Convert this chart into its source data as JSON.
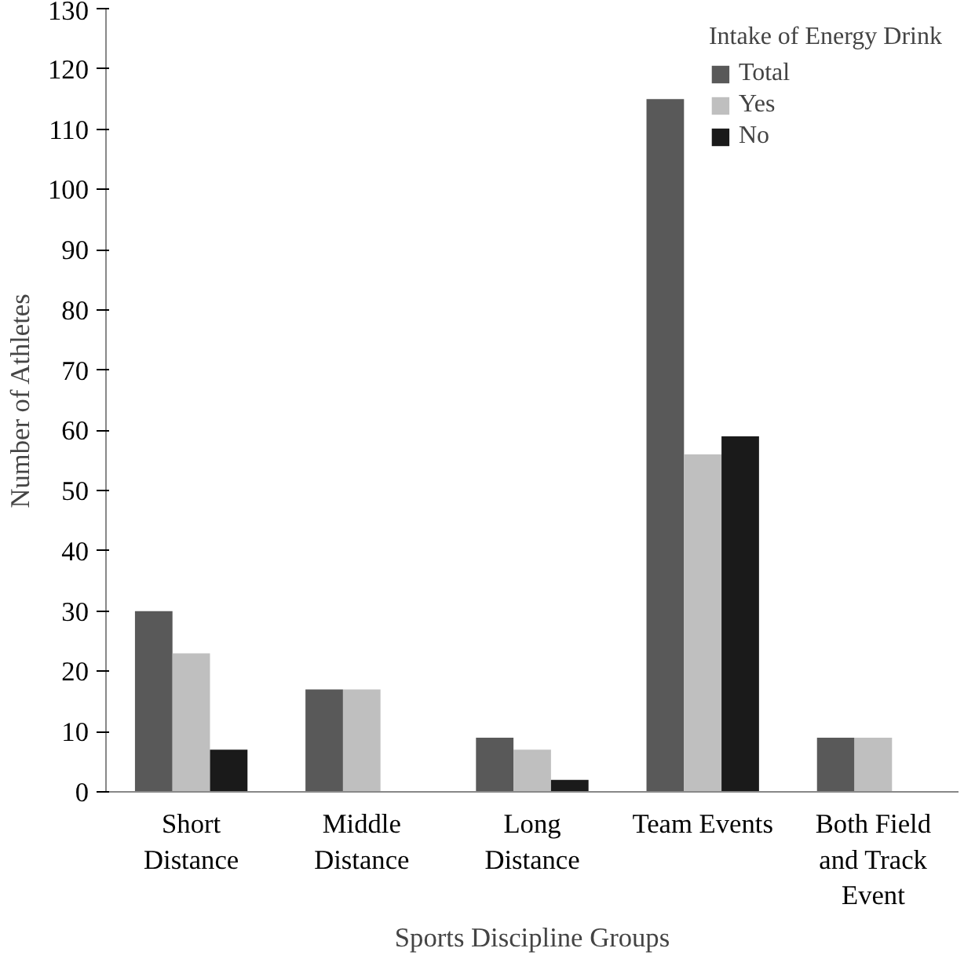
{
  "chart_data": {
    "type": "bar",
    "xlabel": "Sports Discipline Groups",
    "ylabel": "Number of Athletes",
    "legend_title": "Intake of Energy Drink",
    "categories": [
      "Short Distance",
      "Middle Distance",
      "Long Distance",
      "Team Events",
      "Both Field and Track Event"
    ],
    "series": [
      {
        "name": "Total",
        "color": "#595959",
        "values": [
          30,
          17,
          9,
          115,
          9
        ]
      },
      {
        "name": "Yes",
        "color": "#bfbfbf",
        "values": [
          23,
          17,
          7,
          56,
          9
        ]
      },
      {
        "name": "No",
        "color": "#1a1a1a",
        "values": [
          7,
          0,
          2,
          59,
          0
        ]
      }
    ],
    "ylim": [
      0,
      130
    ],
    "yticks": [
      0,
      10,
      20,
      30,
      40,
      50,
      60,
      70,
      80,
      90,
      100,
      110,
      120,
      130
    ],
    "grid": false,
    "legend": "top right"
  }
}
